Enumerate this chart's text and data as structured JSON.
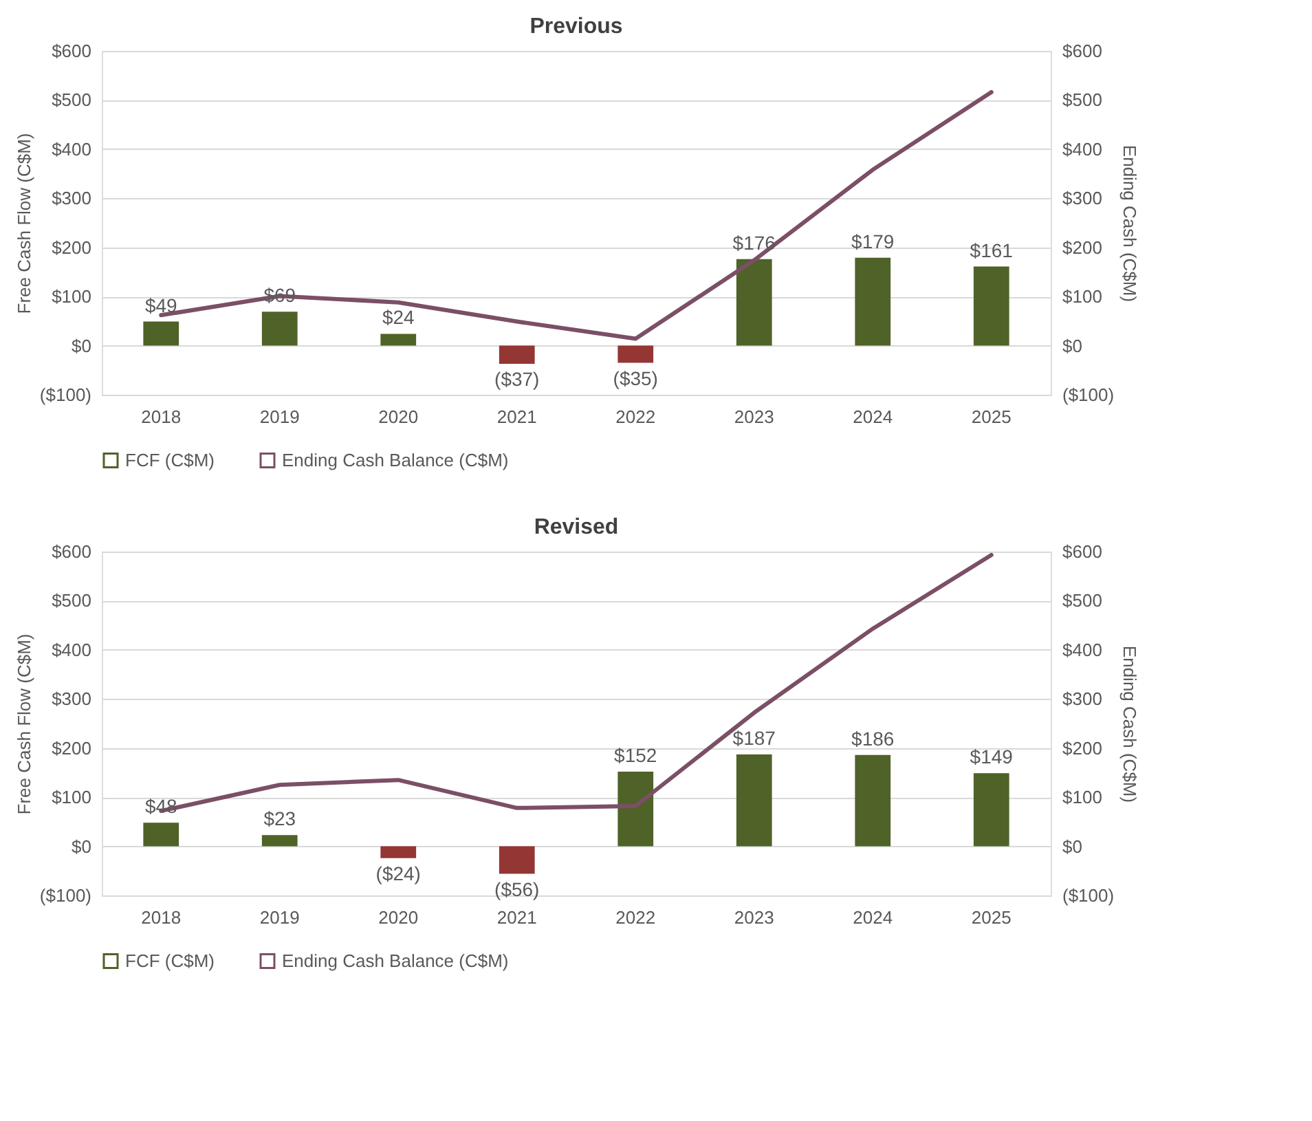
{
  "chart_data": [
    {
      "type": "bar",
      "title": "Previous",
      "categories": [
        "2018",
        "2019",
        "2020",
        "2021",
        "2022",
        "2023",
        "2024",
        "2025"
      ],
      "ylabel": "Free Cash Flow (C$M)",
      "y2label": "Ending Cash (C$M)",
      "series": [
        {
          "name": "FCF (C$M)",
          "color": "#4f6228",
          "colors": [
            "#4f6228",
            "#4f6228",
            "#4f6228",
            "#943634",
            "#943634",
            "#4f6228",
            "#4f6228",
            "#4f6228"
          ],
          "values": [
            49,
            69,
            24,
            -37,
            -35,
            176,
            179,
            161
          ],
          "value_labels": [
            "$49",
            "$69",
            "$24",
            "($37)",
            "($35)",
            "$176",
            "$179",
            "$161"
          ]
        },
        {
          "name": "Ending Cash Balance (C$M)",
          "type": "line",
          "axis": "y2",
          "color": "#7b4f66",
          "values": [
            62,
            101,
            88,
            49,
            14,
            174,
            358,
            516
          ]
        }
      ],
      "ylim": [
        -100,
        600
      ],
      "yticks": [
        {
          "value": -100,
          "label": "($100)"
        },
        {
          "value": 0,
          "label": "$0"
        },
        {
          "value": 100,
          "label": "$100"
        },
        {
          "value": 200,
          "label": "$200"
        },
        {
          "value": 300,
          "label": "$300"
        },
        {
          "value": 400,
          "label": "$400"
        },
        {
          "value": 500,
          "label": "$500"
        },
        {
          "value": 600,
          "label": "$600"
        }
      ],
      "y2lim": [
        -100,
        600
      ],
      "y2ticks": [
        {
          "value": -100,
          "label": "($100)"
        },
        {
          "value": 0,
          "label": "$0"
        },
        {
          "value": 100,
          "label": "$100"
        },
        {
          "value": 200,
          "label": "$200"
        },
        {
          "value": 300,
          "label": "$300"
        },
        {
          "value": 400,
          "label": "$400"
        },
        {
          "value": 500,
          "label": "$500"
        },
        {
          "value": 600,
          "label": "$600"
        }
      ],
      "grid": "y",
      "legend": "bottom"
    },
    {
      "type": "bar",
      "title": "Revised",
      "categories": [
        "2018",
        "2019",
        "2020",
        "2021",
        "2022",
        "2023",
        "2024",
        "2025"
      ],
      "ylabel": "Free Cash Flow (C$M)",
      "y2label": "Ending Cash (C$M)",
      "series": [
        {
          "name": "FCF (C$M)",
          "color": "#4f6228",
          "colors": [
            "#4f6228",
            "#4f6228",
            "#943634",
            "#943634",
            "#4f6228",
            "#4f6228",
            "#4f6228",
            "#4f6228"
          ],
          "values": [
            48,
            23,
            -24,
            -56,
            152,
            187,
            186,
            149
          ],
          "value_labels": [
            "$48",
            "$23",
            "($24)",
            "($56)",
            "$152",
            "$187",
            "$186",
            "$149"
          ]
        },
        {
          "name": "Ending Cash Balance (C$M)",
          "type": "line",
          "axis": "y2",
          "color": "#7b4f66",
          "values": [
            72,
            125,
            135,
            78,
            82,
            272,
            443,
            593
          ]
        }
      ],
      "ylim": [
        -100,
        600
      ],
      "yticks": [
        {
          "value": -100,
          "label": "($100)"
        },
        {
          "value": 0,
          "label": "$0"
        },
        {
          "value": 100,
          "label": "$100"
        },
        {
          "value": 200,
          "label": "$200"
        },
        {
          "value": 300,
          "label": "$300"
        },
        {
          "value": 400,
          "label": "$400"
        },
        {
          "value": 500,
          "label": "$500"
        },
        {
          "value": 600,
          "label": "$600"
        }
      ],
      "y2lim": [
        -100,
        600
      ],
      "y2ticks": [
        {
          "value": -100,
          "label": "($100)"
        },
        {
          "value": 0,
          "label": "$0"
        },
        {
          "value": 100,
          "label": "$100"
        },
        {
          "value": 200,
          "label": "$200"
        },
        {
          "value": 300,
          "label": "$300"
        },
        {
          "value": 400,
          "label": "$400"
        },
        {
          "value": 500,
          "label": "$500"
        },
        {
          "value": 600,
          "label": "$600"
        }
      ],
      "grid": "y",
      "legend": "bottom"
    }
  ]
}
